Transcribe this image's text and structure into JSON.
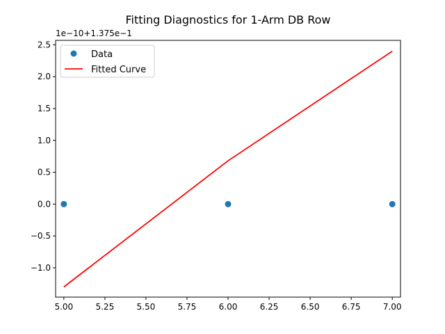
{
  "chart_data": {
    "type": "scatter",
    "title": "Fitting Diagnostics for 1-Arm DB Row",
    "xlabel": "",
    "ylabel": "",
    "y_offset_label": "1e−10+1.375e−1",
    "xlim": [
      4.95,
      7.05
    ],
    "ylim": [
      -1.46,
      2.57
    ],
    "x_ticks": [
      5.0,
      5.25,
      5.5,
      5.75,
      6.0,
      6.25,
      6.5,
      6.75,
      7.0
    ],
    "x_tick_labels": [
      "5.00",
      "5.25",
      "5.50",
      "5.75",
      "6.00",
      "6.25",
      "6.50",
      "6.75",
      "7.00"
    ],
    "y_ticks": [
      -1.0,
      -0.5,
      0.0,
      0.5,
      1.0,
      1.5,
      2.0,
      2.5
    ],
    "y_tick_labels": [
      "−1.0",
      "−0.5",
      "0.0",
      "0.5",
      "1.0",
      "1.5",
      "2.0",
      "2.5"
    ],
    "grid": false,
    "legend_position": "top-left",
    "series": [
      {
        "name": "Data",
        "kind": "scatter",
        "color": "#1f77b4",
        "x": [
          5.0,
          6.0,
          7.0
        ],
        "y": [
          0.0,
          0.0,
          0.0
        ]
      },
      {
        "name": "Fitted Curve",
        "kind": "line",
        "color": "#ff0000",
        "x": [
          5.0,
          6.0,
          7.0
        ],
        "y": [
          -1.3,
          0.68,
          2.4
        ]
      }
    ]
  }
}
